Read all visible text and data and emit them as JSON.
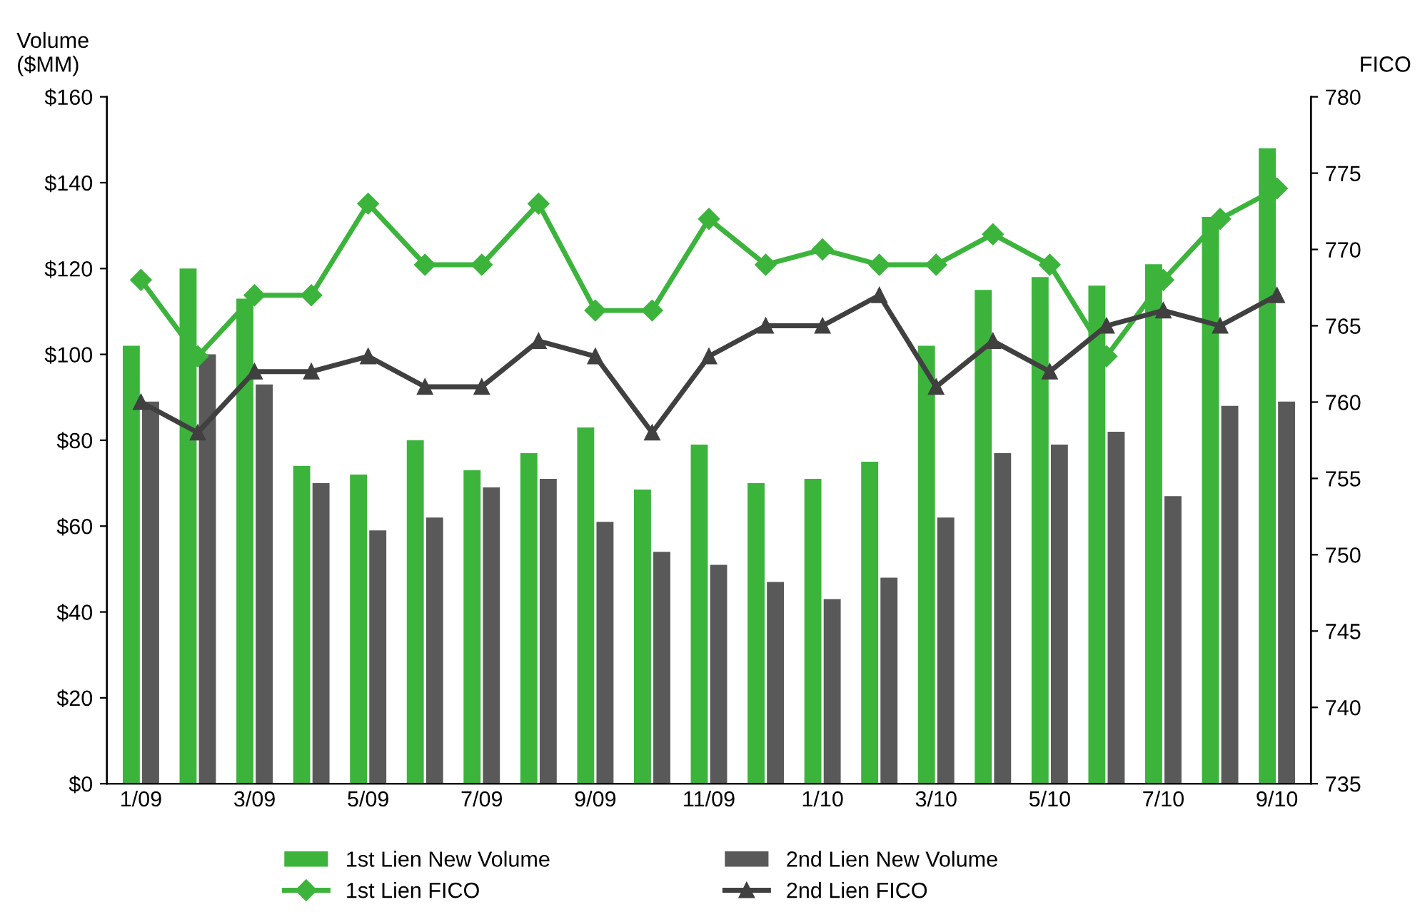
{
  "chart_data": {
    "type": "bar",
    "ylabel": "Volume\n($MM)",
    "y2label": "FICO",
    "categories": [
      "1/09",
      null,
      "3/09",
      null,
      "5/09",
      null,
      "7/09",
      null,
      "9/09",
      null,
      "11/09",
      null,
      "1/10",
      null,
      "3/10",
      null,
      "5/10",
      null,
      "7/10",
      null,
      "9/10"
    ],
    "series": [
      {
        "name": "1st Lien New Volume",
        "color": "#3cb43c",
        "values": [
          102,
          120,
          113,
          74,
          72,
          80,
          73,
          77,
          83,
          68.5,
          79,
          70,
          71,
          75,
          102,
          115,
          118,
          116,
          121,
          132,
          148
        ]
      },
      {
        "name": "2nd Lien New Volume",
        "color": "#595959",
        "values": [
          89,
          100,
          93,
          70,
          59,
          62,
          69,
          71,
          61,
          54,
          51,
          47,
          43,
          48,
          62,
          77,
          79,
          82,
          67,
          88,
          89
        ]
      },
      {
        "name": "1st Lien FICO",
        "type": "line",
        "axis": "y2",
        "marker": "diamond",
        "color": "#3cb43c",
        "values": [
          768,
          763,
          767,
          767,
          773,
          769,
          769,
          773,
          766,
          766,
          772,
          769,
          770,
          769,
          769,
          771,
          769,
          763,
          768,
          772,
          774
        ]
      },
      {
        "name": "2nd Lien FICO",
        "type": "line",
        "axis": "y2",
        "marker": "triangle",
        "color": "#404040",
        "values": [
          760,
          758,
          762,
          762,
          763,
          761,
          761,
          764,
          763,
          758,
          763,
          765,
          765,
          767,
          761,
          764,
          762,
          765,
          766,
          765,
          767
        ]
      }
    ],
    "ylim": [
      0,
      160
    ],
    "yticks": [
      {
        "value": 0,
        "label": "$0"
      },
      {
        "value": 20,
        "label": "$20"
      },
      {
        "value": 40,
        "label": "$40"
      },
      {
        "value": 60,
        "label": "$60"
      },
      {
        "value": 80,
        "label": "$80"
      },
      {
        "value": 100,
        "label": "$100"
      },
      {
        "value": 120,
        "label": "$120"
      },
      {
        "value": 140,
        "label": "$140"
      },
      {
        "value": 160,
        "label": "$160"
      }
    ],
    "y2lim": [
      735,
      780
    ],
    "y2ticks": [
      735,
      740,
      745,
      750,
      755,
      760,
      765,
      770,
      775,
      780
    ],
    "grid": false,
    "legend": "bottom",
    "line_style": "solid"
  }
}
